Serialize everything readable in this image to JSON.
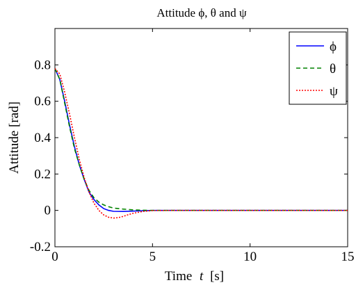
{
  "chart_data": {
    "type": "line",
    "title": "Attitude ϕ, θ and ψ",
    "xlabel_prefix": "Time",
    "xlabel_var": "t",
    "xlabel_unit": "[s]",
    "ylabel": "Attitude [rad]",
    "xlim": [
      0,
      15
    ],
    "ylim": [
      -0.2,
      1.0
    ],
    "xticks": [
      0,
      5,
      10,
      15
    ],
    "xtick_labels": [
      "0",
      "5",
      "10",
      "15"
    ],
    "yticks": [
      -0.2,
      0,
      0.2,
      0.4,
      0.6,
      0.8
    ],
    "ytick_labels": [
      "-0.2",
      "0",
      "0.2",
      "0.4",
      "0.6",
      "0.8"
    ],
    "grid": false,
    "legend_position": "top-right",
    "series": [
      {
        "name": "ϕ",
        "color": "#0000ff",
        "style": "solid",
        "x": [
          0,
          0.25,
          0.5,
          0.75,
          1.0,
          1.25,
          1.5,
          1.75,
          2.0,
          2.25,
          2.5,
          2.75,
          3.0,
          3.5,
          4.0,
          4.5,
          5.0,
          6.0,
          8.0,
          10.0,
          12.0,
          15.0
        ],
        "y": [
          0.78,
          0.72,
          0.6,
          0.47,
          0.35,
          0.25,
          0.17,
          0.1,
          0.06,
          0.03,
          0.01,
          0.0,
          -0.005,
          -0.006,
          -0.004,
          -0.002,
          0.0,
          0.0,
          0.0,
          0.0,
          0.0,
          0.0
        ]
      },
      {
        "name": "θ",
        "color": "#008000",
        "style": "dashed",
        "x": [
          0,
          0.25,
          0.5,
          0.75,
          1.0,
          1.25,
          1.5,
          1.75,
          2.0,
          2.25,
          2.5,
          2.75,
          3.0,
          3.5,
          4.0,
          4.5,
          5.0,
          6.0,
          8.0,
          10.0,
          12.0,
          15.0
        ],
        "y": [
          0.78,
          0.72,
          0.59,
          0.46,
          0.34,
          0.25,
          0.17,
          0.11,
          0.07,
          0.045,
          0.03,
          0.02,
          0.013,
          0.007,
          0.003,
          0.001,
          0.0,
          0.0,
          0.0,
          0.0,
          0.0,
          0.0
        ]
      },
      {
        "name": "ψ",
        "color": "#ff0000",
        "style": "dotted",
        "x": [
          0,
          0.25,
          0.5,
          0.75,
          1.0,
          1.25,
          1.5,
          1.75,
          2.0,
          2.25,
          2.5,
          2.75,
          3.0,
          3.25,
          3.5,
          3.75,
          4.0,
          4.5,
          5.0,
          6.0,
          8.0,
          10.0,
          12.0,
          15.0
        ],
        "y": [
          0.78,
          0.75,
          0.65,
          0.53,
          0.4,
          0.28,
          0.18,
          0.1,
          0.04,
          0.0,
          -0.025,
          -0.038,
          -0.042,
          -0.04,
          -0.033,
          -0.024,
          -0.016,
          -0.006,
          -0.001,
          0.0,
          0.0,
          0.0,
          0.0,
          0.0
        ]
      }
    ]
  }
}
